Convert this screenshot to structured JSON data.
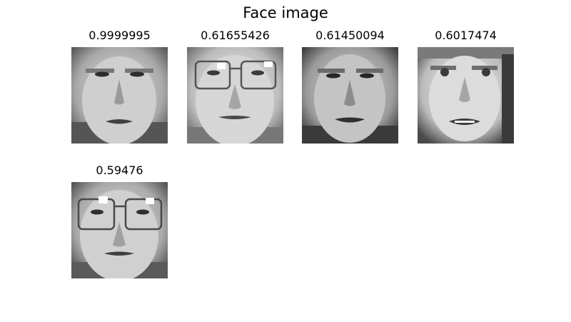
{
  "figure": {
    "title": "Face image",
    "faces": [
      {
        "score": "0.9999995",
        "glasses": false,
        "tone": "#8a8a8a",
        "bottom": "#444444"
      },
      {
        "score": "0.61655426",
        "glasses": true,
        "tone": "#b4b4b4",
        "bottom": "#6a6a6a"
      },
      {
        "score": "0.61450094",
        "glasses": false,
        "tone": "#7a7a7a",
        "bottom": "#3a3a3a"
      },
      {
        "score": "0.6017474",
        "glasses": false,
        "tone": "#a6a6a6",
        "bottom": "#444444"
      },
      {
        "score": "0.59476",
        "glasses": true,
        "tone": "#9c9c9c",
        "bottom": "#5a5a5a"
      }
    ]
  }
}
